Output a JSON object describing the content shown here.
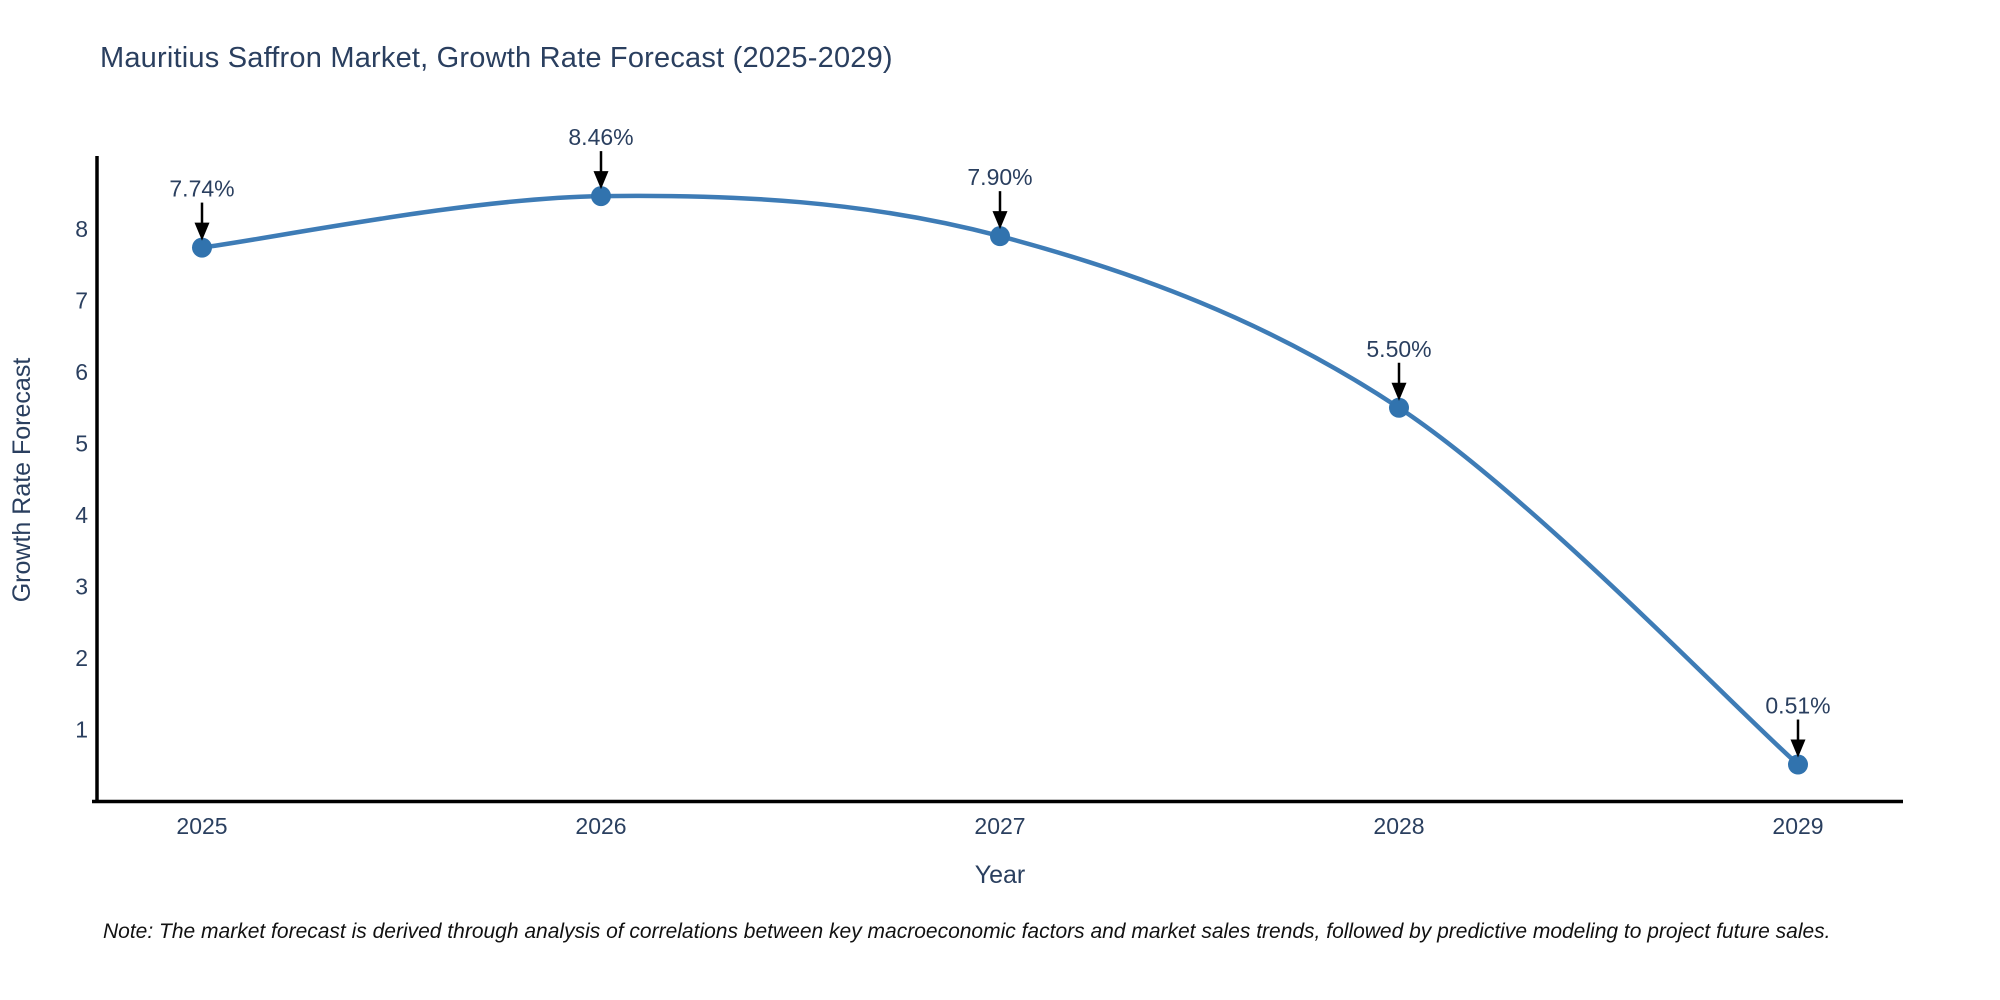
{
  "title": "Mauritius Saffron Market, Growth Rate Forecast (2025-2029)",
  "note": "Note: The market forecast is derived through analysis of correlations between key macroeconomic factors and market sales trends, followed by predictive modeling to project future sales.",
  "chart_data": {
    "type": "line",
    "line_shape": "spline",
    "x": [
      2025,
      2026,
      2027,
      2028,
      2029
    ],
    "values": [
      7.74,
      8.46,
      7.9,
      5.5,
      0.51
    ],
    "point_labels": [
      "7.74%",
      "8.46%",
      "7.90%",
      "5.50%",
      "0.51%"
    ],
    "xticks": [
      "2025",
      "2026",
      "2027",
      "2028",
      "2029"
    ],
    "yticks": [
      1,
      2,
      3,
      4,
      5,
      6,
      7,
      8
    ],
    "ylim": [
      0,
      9
    ],
    "xlabel": "Year",
    "ylabel": "Growth Rate Forecast",
    "grid": false,
    "legend": "none",
    "annotations_have_arrows": true,
    "colors": {
      "line": "#3e7cb6",
      "marker": "#3173ae",
      "axis": "#000000",
      "text": "#2a3f5f",
      "arrow": "#000000",
      "note_text": "#111111",
      "background": "#ffffff"
    }
  }
}
